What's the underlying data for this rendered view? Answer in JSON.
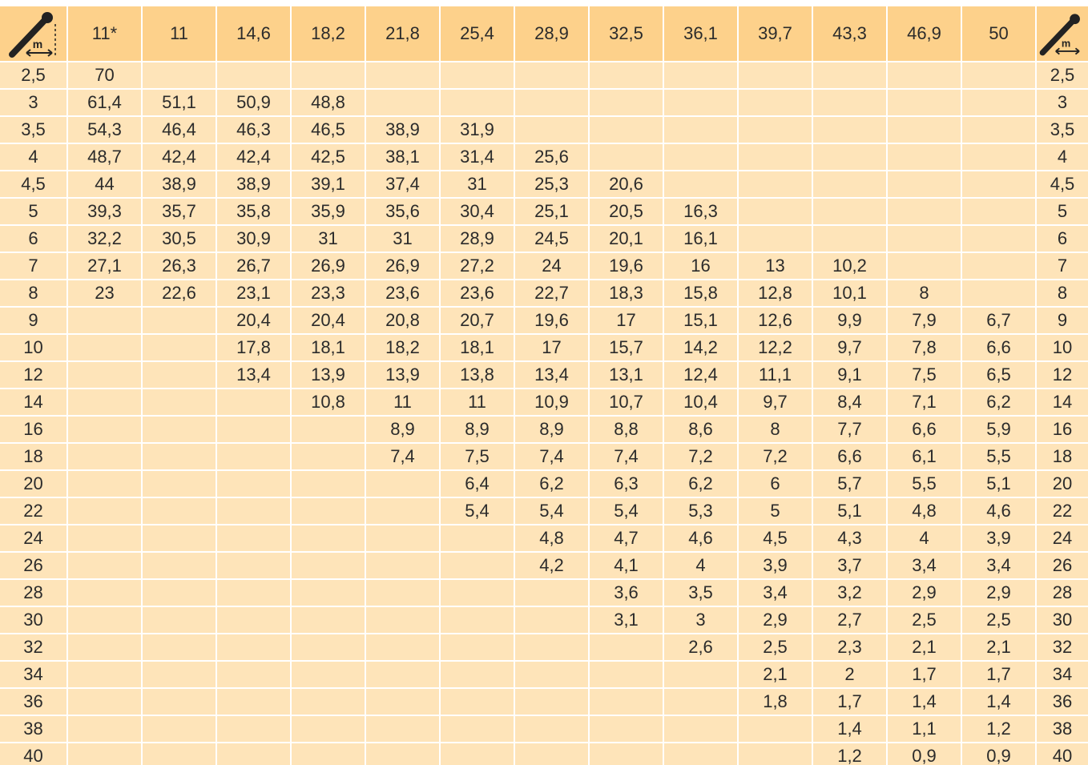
{
  "table": {
    "columns": [
      "11*",
      "11",
      "14,6",
      "18,2",
      "21,8",
      "25,4",
      "28,9",
      "32,5",
      "36,1",
      "39,7",
      "43,3",
      "46,9",
      "50"
    ],
    "rows": [
      {
        "radius": "2,5",
        "values": [
          "70",
          null,
          null,
          null,
          null,
          null,
          null,
          null,
          null,
          null,
          null,
          null,
          null
        ]
      },
      {
        "radius": "3",
        "values": [
          "61,4",
          "51,1",
          "50,9",
          "48,8",
          null,
          null,
          null,
          null,
          null,
          null,
          null,
          null,
          null
        ]
      },
      {
        "radius": "3,5",
        "values": [
          "54,3",
          "46,4",
          "46,3",
          "46,5",
          "38,9",
          "31,9",
          null,
          null,
          null,
          null,
          null,
          null,
          null
        ]
      },
      {
        "radius": "4",
        "values": [
          "48,7",
          "42,4",
          "42,4",
          "42,5",
          "38,1",
          "31,4",
          "25,6",
          null,
          null,
          null,
          null,
          null,
          null
        ]
      },
      {
        "radius": "4,5",
        "values": [
          "44",
          "38,9",
          "38,9",
          "39,1",
          "37,4",
          "31",
          "25,3",
          "20,6",
          null,
          null,
          null,
          null,
          null
        ]
      },
      {
        "radius": "5",
        "values": [
          "39,3",
          "35,7",
          "35,8",
          "35,9",
          "35,6",
          "30,4",
          "25,1",
          "20,5",
          "16,3",
          null,
          null,
          null,
          null
        ]
      },
      {
        "radius": "6",
        "values": [
          "32,2",
          "30,5",
          "30,9",
          "31",
          "31",
          "28,9",
          "24,5",
          "20,1",
          "16,1",
          null,
          null,
          null,
          null
        ]
      },
      {
        "radius": "7",
        "values": [
          "27,1",
          "26,3",
          "26,7",
          "26,9",
          "26,9",
          "27,2",
          "24",
          "19,6",
          "16",
          "13",
          "10,2",
          null,
          null
        ]
      },
      {
        "radius": "8",
        "values": [
          "23",
          "22,6",
          "23,1",
          "23,3",
          "23,6",
          "23,6",
          "22,7",
          "18,3",
          "15,8",
          "12,8",
          "10,1",
          "8",
          null
        ]
      },
      {
        "radius": "9",
        "values": [
          null,
          null,
          "20,4",
          "20,4",
          "20,8",
          "20,7",
          "19,6",
          "17",
          "15,1",
          "12,6",
          "9,9",
          "7,9",
          "6,7"
        ]
      },
      {
        "radius": "10",
        "values": [
          null,
          null,
          "17,8",
          "18,1",
          "18,2",
          "18,1",
          "17",
          "15,7",
          "14,2",
          "12,2",
          "9,7",
          "7,8",
          "6,6"
        ]
      },
      {
        "radius": "12",
        "values": [
          null,
          null,
          "13,4",
          "13,9",
          "13,9",
          "13,8",
          "13,4",
          "13,1",
          "12,4",
          "11,1",
          "9,1",
          "7,5",
          "6,5"
        ]
      },
      {
        "radius": "14",
        "values": [
          null,
          null,
          null,
          "10,8",
          "11",
          "11",
          "10,9",
          "10,7",
          "10,4",
          "9,7",
          "8,4",
          "7,1",
          "6,2"
        ]
      },
      {
        "radius": "16",
        "values": [
          null,
          null,
          null,
          null,
          "8,9",
          "8,9",
          "8,9",
          "8,8",
          "8,6",
          "8",
          "7,7",
          "6,6",
          "5,9"
        ]
      },
      {
        "radius": "18",
        "values": [
          null,
          null,
          null,
          null,
          "7,4",
          "7,5",
          "7,4",
          "7,4",
          "7,2",
          "7,2",
          "6,6",
          "6,1",
          "5,5"
        ]
      },
      {
        "radius": "20",
        "values": [
          null,
          null,
          null,
          null,
          null,
          "6,4",
          "6,2",
          "6,3",
          "6,2",
          "6",
          "5,7",
          "5,5",
          "5,1"
        ]
      },
      {
        "radius": "22",
        "values": [
          null,
          null,
          null,
          null,
          null,
          "5,4",
          "5,4",
          "5,4",
          "5,3",
          "5",
          "5,1",
          "4,8",
          "4,6"
        ]
      },
      {
        "radius": "24",
        "values": [
          null,
          null,
          null,
          null,
          null,
          null,
          "4,8",
          "4,7",
          "4,6",
          "4,5",
          "4,3",
          "4",
          "3,9"
        ]
      },
      {
        "radius": "26",
        "values": [
          null,
          null,
          null,
          null,
          null,
          null,
          "4,2",
          "4,1",
          "4",
          "3,9",
          "3,7",
          "3,4",
          "3,4"
        ]
      },
      {
        "radius": "28",
        "values": [
          null,
          null,
          null,
          null,
          null,
          null,
          null,
          "3,6",
          "3,5",
          "3,4",
          "3,2",
          "2,9",
          "2,9"
        ]
      },
      {
        "radius": "30",
        "values": [
          null,
          null,
          null,
          null,
          null,
          null,
          null,
          "3,1",
          "3",
          "2,9",
          "2,7",
          "2,5",
          "2,5"
        ]
      },
      {
        "radius": "32",
        "values": [
          null,
          null,
          null,
          null,
          null,
          null,
          null,
          null,
          "2,6",
          "2,5",
          "2,3",
          "2,1",
          "2,1"
        ]
      },
      {
        "radius": "34",
        "values": [
          null,
          null,
          null,
          null,
          null,
          null,
          null,
          null,
          null,
          "2,1",
          "2",
          "1,7",
          "1,7"
        ]
      },
      {
        "radius": "36",
        "values": [
          null,
          null,
          null,
          null,
          null,
          null,
          null,
          null,
          null,
          "1,8",
          "1,7",
          "1,4",
          "1,4"
        ]
      },
      {
        "radius": "38",
        "values": [
          null,
          null,
          null,
          null,
          null,
          null,
          null,
          null,
          null,
          null,
          "1,4",
          "1,1",
          "1,2"
        ]
      },
      {
        "radius": "40",
        "values": [
          null,
          null,
          null,
          null,
          null,
          null,
          null,
          null,
          null,
          null,
          "1,2",
          "0,9",
          "0,9"
        ]
      }
    ]
  }
}
